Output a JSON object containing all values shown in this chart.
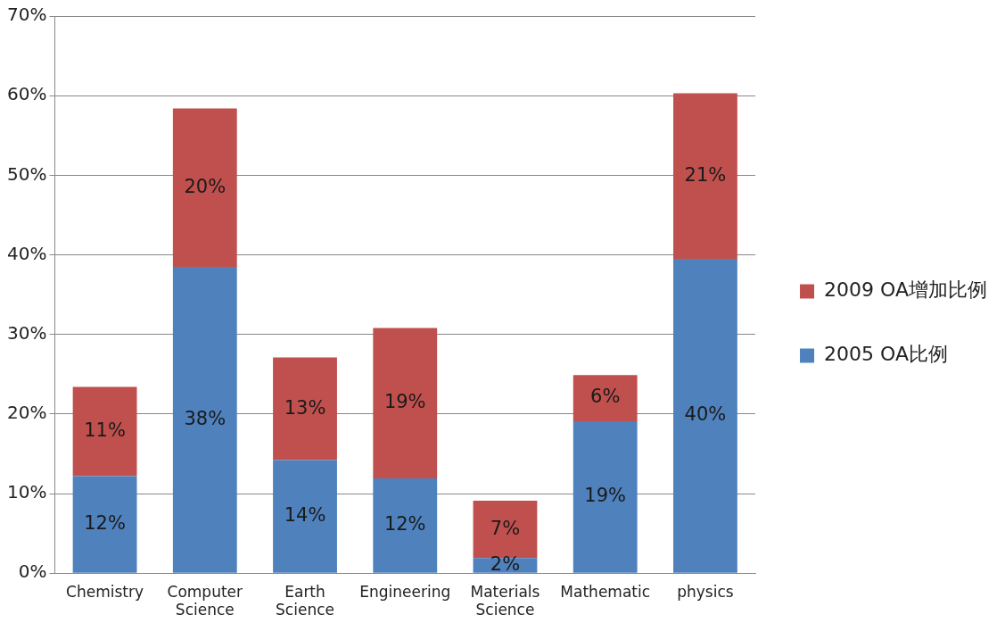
{
  "chart_data": {
    "type": "bar",
    "stacked": true,
    "categories": [
      "Chemistry",
      "Computer Science",
      "Earth Science",
      "Engineering",
      "Materials Science",
      "Mathematic",
      "physics"
    ],
    "series": [
      {
        "name": "2005 OA比例",
        "color": "#4f81bd",
        "values": [
          12.2,
          38.5,
          14.2,
          11.9,
          1.9,
          19.1,
          39.5
        ],
        "value_labels": [
          "12%",
          "38%",
          "14%",
          "12%",
          "2%",
          "19%",
          "40%"
        ]
      },
      {
        "name": "2009 OA增加比例",
        "color": "#c0504d",
        "values": [
          11.2,
          19.9,
          12.9,
          18.9,
          7.2,
          5.8,
          20.8
        ],
        "value_labels": [
          "11%",
          "20%",
          "13%",
          "19%",
          "7%",
          "6%",
          "21%"
        ]
      }
    ],
    "ylim": [
      0,
      70
    ],
    "yticks": [
      {
        "value": 0,
        "label": "0%"
      },
      {
        "value": 10,
        "label": "10%"
      },
      {
        "value": 20,
        "label": "20%"
      },
      {
        "value": 30,
        "label": "30%"
      },
      {
        "value": 40,
        "label": "40%"
      },
      {
        "value": 50,
        "label": "50%"
      },
      {
        "value": 60,
        "label": "60%"
      },
      {
        "value": 70,
        "label": "70%"
      }
    ],
    "grid": "y",
    "legend": "right"
  }
}
